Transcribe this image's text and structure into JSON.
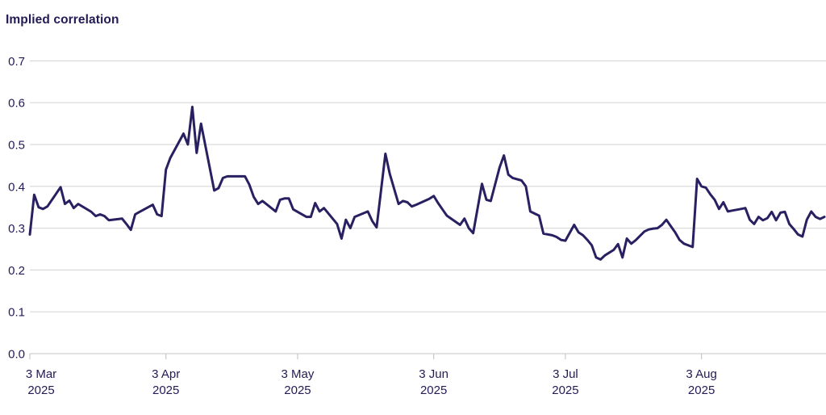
{
  "title": "Implied correlation",
  "colors": {
    "text": "#221b54",
    "line": "#282060",
    "gridline": "#d9d9d9",
    "axis": "#c9c9c9",
    "background": "#ffffff"
  },
  "chart_data": {
    "type": "line",
    "title": "Implied correlation",
    "xlabel": "",
    "ylabel": "",
    "legend": "none",
    "grid": "horizontal",
    "ylim": [
      0.0,
      0.7
    ],
    "ytick_labels": [
      "0.0",
      "0.1",
      "0.2",
      "0.3",
      "0.4",
      "0.5",
      "0.6",
      "0.7"
    ],
    "yticks": [
      0.0,
      0.1,
      0.2,
      0.3,
      0.4,
      0.5,
      0.6,
      0.7
    ],
    "x_unit": "days since 3 Mar 2025",
    "xlim_days": [
      0,
      181
    ],
    "xticks": [
      {
        "day": 0,
        "line1": "3 Mar",
        "line2": "2025"
      },
      {
        "day": 31,
        "line1": "3 Apr",
        "line2": "2025"
      },
      {
        "day": 61,
        "line1": "3 May",
        "line2": "2025"
      },
      {
        "day": 92,
        "line1": "3 Jun",
        "line2": "2025"
      },
      {
        "day": 122,
        "line1": "3 Jul",
        "line2": "2025"
      },
      {
        "day": 153,
        "line1": "3 Aug",
        "line2": "2025"
      }
    ],
    "series": [
      {
        "name": "Implied correlation",
        "points": [
          [
            0,
            0.285
          ],
          [
            1,
            0.38
          ],
          [
            2,
            0.35
          ],
          [
            3,
            0.346
          ],
          [
            4,
            0.352
          ],
          [
            7,
            0.398
          ],
          [
            8,
            0.358
          ],
          [
            9,
            0.366
          ],
          [
            10,
            0.348
          ],
          [
            11,
            0.358
          ],
          [
            14,
            0.339
          ],
          [
            15,
            0.329
          ],
          [
            16,
            0.333
          ],
          [
            17,
            0.329
          ],
          [
            18,
            0.319
          ],
          [
            21,
            0.323
          ],
          [
            22,
            0.31
          ],
          [
            23,
            0.296
          ],
          [
            24,
            0.333
          ],
          [
            25,
            0.339
          ],
          [
            28,
            0.356
          ],
          [
            29,
            0.333
          ],
          [
            30,
            0.329
          ],
          [
            31,
            0.44
          ],
          [
            32,
            0.468
          ],
          [
            35,
            0.526
          ],
          [
            36,
            0.5
          ],
          [
            37,
            0.59
          ],
          [
            38,
            0.48
          ],
          [
            39,
            0.55
          ],
          [
            42,
            0.39
          ],
          [
            43,
            0.396
          ],
          [
            44,
            0.42
          ],
          [
            45,
            0.424
          ],
          [
            46,
            0.424
          ],
          [
            49,
            0.424
          ],
          [
            50,
            0.404
          ],
          [
            51,
            0.375
          ],
          [
            52,
            0.358
          ],
          [
            53,
            0.365
          ],
          [
            56,
            0.34
          ],
          [
            57,
            0.368
          ],
          [
            58,
            0.371
          ],
          [
            59,
            0.371
          ],
          [
            60,
            0.345
          ],
          [
            63,
            0.327
          ],
          [
            64,
            0.327
          ],
          [
            65,
            0.36
          ],
          [
            66,
            0.34
          ],
          [
            67,
            0.348
          ],
          [
            70,
            0.31
          ],
          [
            71,
            0.275
          ],
          [
            72,
            0.32
          ],
          [
            73,
            0.3
          ],
          [
            74,
            0.327
          ],
          [
            77,
            0.34
          ],
          [
            78,
            0.317
          ],
          [
            79,
            0.302
          ],
          [
            81,
            0.478
          ],
          [
            82,
            0.43
          ],
          [
            84,
            0.358
          ],
          [
            85,
            0.365
          ],
          [
            86,
            0.362
          ],
          [
            87,
            0.352
          ],
          [
            88,
            0.356
          ],
          [
            91,
            0.37
          ],
          [
            92,
            0.377
          ],
          [
            93,
            0.36
          ],
          [
            94,
            0.345
          ],
          [
            95,
            0.33
          ],
          [
            98,
            0.308
          ],
          [
            99,
            0.323
          ],
          [
            100,
            0.3
          ],
          [
            101,
            0.288
          ],
          [
            103,
            0.406
          ],
          [
            104,
            0.368
          ],
          [
            105,
            0.365
          ],
          [
            107,
            0.445
          ],
          [
            108,
            0.474
          ],
          [
            109,
            0.428
          ],
          [
            110,
            0.42
          ],
          [
            112,
            0.414
          ],
          [
            113,
            0.4
          ],
          [
            114,
            0.34
          ],
          [
            115,
            0.335
          ],
          [
            116,
            0.33
          ],
          [
            117,
            0.287
          ],
          [
            119,
            0.283
          ],
          [
            120,
            0.279
          ],
          [
            121,
            0.272
          ],
          [
            122,
            0.27
          ],
          [
            124,
            0.308
          ],
          [
            125,
            0.29
          ],
          [
            126,
            0.283
          ],
          [
            127,
            0.272
          ],
          [
            128,
            0.259
          ],
          [
            129,
            0.23
          ],
          [
            130,
            0.225
          ],
          [
            131,
            0.235
          ],
          [
            133,
            0.248
          ],
          [
            134,
            0.262
          ],
          [
            135,
            0.23
          ],
          [
            136,
            0.275
          ],
          [
            137,
            0.263
          ],
          [
            138,
            0.271
          ],
          [
            140,
            0.292
          ],
          [
            141,
            0.297
          ],
          [
            142,
            0.299
          ],
          [
            143,
            0.3
          ],
          [
            144,
            0.308
          ],
          [
            145,
            0.32
          ],
          [
            146,
            0.305
          ],
          [
            147,
            0.29
          ],
          [
            148,
            0.272
          ],
          [
            149,
            0.263
          ],
          [
            151,
            0.255
          ],
          [
            152,
            0.418
          ],
          [
            153,
            0.4
          ],
          [
            154,
            0.397
          ],
          [
            155,
            0.381
          ],
          [
            156,
            0.368
          ],
          [
            157,
            0.346
          ],
          [
            158,
            0.362
          ],
          [
            159,
            0.34
          ],
          [
            160,
            0.342
          ],
          [
            161,
            0.344
          ],
          [
            162,
            0.346
          ],
          [
            163,
            0.348
          ],
          [
            164,
            0.32
          ],
          [
            165,
            0.31
          ],
          [
            166,
            0.327
          ],
          [
            167,
            0.319
          ],
          [
            168,
            0.324
          ],
          [
            169,
            0.339
          ],
          [
            170,
            0.319
          ],
          [
            171,
            0.337
          ],
          [
            172,
            0.339
          ],
          [
            173,
            0.31
          ],
          [
            174,
            0.298
          ],
          [
            175,
            0.285
          ],
          [
            176,
            0.28
          ],
          [
            177,
            0.32
          ],
          [
            178,
            0.34
          ],
          [
            179,
            0.327
          ],
          [
            180,
            0.322
          ],
          [
            181,
            0.327
          ]
        ]
      }
    ]
  }
}
